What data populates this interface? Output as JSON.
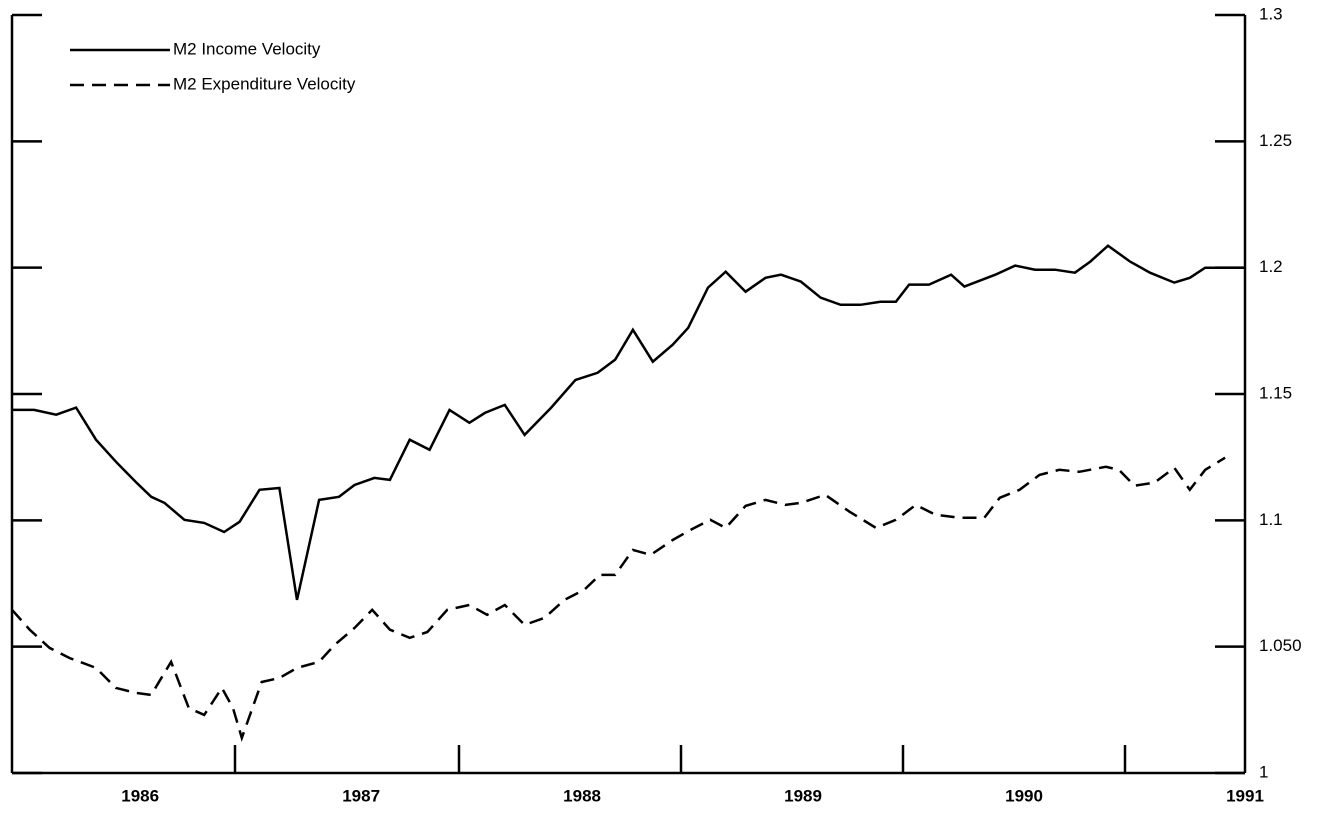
{
  "chart_data": {
    "type": "line",
    "legend": "top-left",
    "xlim": [
      1985.42,
      1991
    ],
    "xticks": [
      1986,
      1987,
      1988,
      1989,
      1990,
      1991
    ],
    "ylim": [
      1,
      1.3
    ],
    "yticks": [
      1,
      {
        "value": 1.05,
        "label": "1.050"
      },
      1.1,
      1.15,
      1.2,
      1.25,
      1.3
    ],
    "series": [
      {
        "name": "M2 Income Velocity",
        "color": "#000000",
        "dash": "solid",
        "x": [
          1985.42,
          1985.52,
          1985.62,
          1985.71,
          1985.8,
          1985.89,
          1985.98,
          1986.05,
          1986.11,
          1986.2,
          1986.29,
          1986.38,
          1986.45,
          1986.54,
          1986.63,
          1986.71,
          1986.81,
          1986.9,
          1986.97,
          1987.06,
          1987.13,
          1987.22,
          1987.31,
          1987.4,
          1987.49,
          1987.56,
          1987.65,
          1987.74,
          1987.86,
          1987.97,
          1988.07,
          1988.15,
          1988.23,
          1988.32,
          1988.41,
          1988.48,
          1988.57,
          1988.65,
          1988.74,
          1988.83,
          1988.9,
          1988.99,
          1989.08,
          1989.17,
          1989.26,
          1989.35,
          1989.42,
          1989.48,
          1989.57,
          1989.67,
          1989.73,
          1989.87,
          1989.96,
          1990.05,
          1990.14,
          1990.23,
          1990.3,
          1990.38,
          1990.48,
          1990.57,
          1990.68,
          1990.75,
          1990.82,
          1991.0
        ],
        "values": [
          1.1437,
          1.1437,
          1.1418,
          1.1446,
          1.1319,
          1.1232,
          1.1152,
          1.1093,
          1.1069,
          1.1002,
          1.099,
          1.0954,
          1.0994,
          1.1121,
          1.1128,
          1.0685,
          1.1081,
          1.1093,
          1.114,
          1.1168,
          1.116,
          1.1319,
          1.1279,
          1.1437,
          1.1386,
          1.1425,
          1.1457,
          1.1338,
          1.1446,
          1.1556,
          1.1584,
          1.1636,
          1.1754,
          1.1628,
          1.1695,
          1.1762,
          1.1921,
          1.1984,
          1.1905,
          1.196,
          1.1972,
          1.1945,
          1.1881,
          1.1853,
          1.1853,
          1.1865,
          1.1865,
          1.1933,
          1.1933,
          1.1972,
          1.1925,
          1.1972,
          1.2008,
          1.1992,
          1.1992,
          1.198,
          1.2024,
          1.2087,
          1.2024,
          1.198,
          1.1941,
          1.196,
          1.2,
          1.2
        ]
      },
      {
        "name": "M2 Expenditure Velocity",
        "color": "#000000",
        "dash": "dashed",
        "x": [
          1985.42,
          1985.5,
          1985.59,
          1985.68,
          1985.8,
          1985.89,
          1985.98,
          1986.05,
          1986.14,
          1986.22,
          1986.29,
          1986.37,
          1986.42,
          1986.46,
          1986.55,
          1986.63,
          1986.71,
          1986.81,
          1986.88,
          1986.97,
          1987.05,
          1987.13,
          1987.22,
          1987.3,
          1987.39,
          1987.49,
          1987.57,
          1987.65,
          1987.74,
          1987.83,
          1987.92,
          1988.01,
          1988.08,
          1988.15,
          1988.23,
          1988.31,
          1988.41,
          1988.49,
          1988.58,
          1988.65,
          1988.74,
          1988.83,
          1988.92,
          1988.99,
          1989.1,
          1989.21,
          1989.33,
          1989.42,
          1989.51,
          1989.6,
          1989.71,
          1989.82,
          1989.89,
          1989.98,
          1990.07,
          1990.16,
          1990.25,
          1990.37,
          1990.43,
          1990.5,
          1990.59,
          1990.68,
          1990.75,
          1990.82,
          1990.91
        ],
        "values": [
          1.0646,
          1.0567,
          1.0495,
          1.0455,
          1.0416,
          1.0337,
          1.0317,
          1.0309,
          1.044,
          1.0257,
          1.023,
          1.0337,
          1.0257,
          1.0139,
          1.036,
          1.0376,
          1.0416,
          1.044,
          1.0507,
          1.0574,
          1.0646,
          1.0567,
          1.0535,
          1.0558,
          1.0646,
          1.0665,
          1.0626,
          1.0665,
          1.0586,
          1.0614,
          1.0685,
          1.0725,
          1.0784,
          1.0784,
          1.0883,
          1.0863,
          1.0922,
          1.0962,
          1.1002,
          1.097,
          1.1057,
          1.1081,
          1.1061,
          1.1069,
          1.1101,
          1.1034,
          1.097,
          1.1002,
          1.1061,
          1.1022,
          1.101,
          1.101,
          1.1089,
          1.1121,
          1.118,
          1.12,
          1.1192,
          1.1212,
          1.12,
          1.1137,
          1.1149,
          1.1208,
          1.1121,
          1.12,
          1.1248
        ]
      }
    ]
  }
}
